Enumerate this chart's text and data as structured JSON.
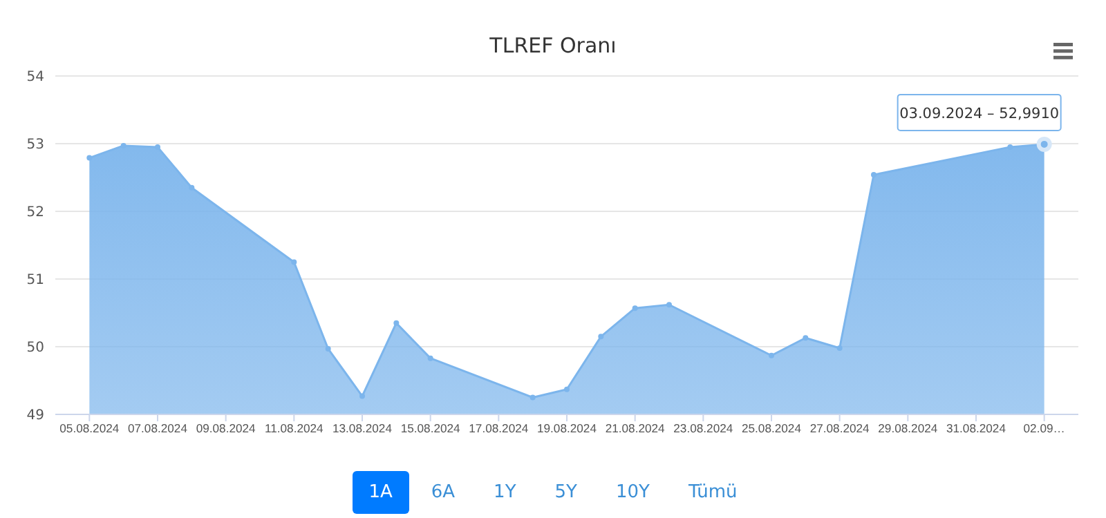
{
  "chart_data": {
    "type": "area",
    "title": "TLREF Oranı",
    "x": [
      "2024-08-05",
      "2024-08-06",
      "2024-08-07",
      "2024-08-08",
      "2024-08-11",
      "2024-08-12",
      "2024-08-13",
      "2024-08-14",
      "2024-08-15",
      "2024-08-18",
      "2024-08-19",
      "2024-08-20",
      "2024-08-21",
      "2024-08-22",
      "2024-08-25",
      "2024-08-26",
      "2024-08-27",
      "2024-08-28",
      "2024-09-01",
      "2024-09-02"
    ],
    "series": [
      {
        "color": "#7cb5ec",
        "values": [
          52.79,
          52.97,
          52.95,
          52.35,
          51.25,
          49.97,
          49.27,
          50.35,
          49.83,
          49.25,
          49.37,
          50.15,
          50.57,
          50.62,
          49.87,
          50.13,
          49.98,
          52.54,
          52.95,
          52.991
        ]
      }
    ],
    "xlim": [
      "2024-08-04",
      "2024-09-03"
    ],
    "xticks": [
      {
        "value": "2024-08-05",
        "label": "05.08.2024"
      },
      {
        "value": "2024-08-07",
        "label": "07.08.2024"
      },
      {
        "value": "2024-08-09",
        "label": "09.08.2024"
      },
      {
        "value": "2024-08-11",
        "label": "11.08.2024"
      },
      {
        "value": "2024-08-13",
        "label": "13.08.2024"
      },
      {
        "value": "2024-08-15",
        "label": "15.08.2024"
      },
      {
        "value": "2024-08-17",
        "label": "17.08.2024"
      },
      {
        "value": "2024-08-19",
        "label": "19.08.2024"
      },
      {
        "value": "2024-08-21",
        "label": "21.08.2024"
      },
      {
        "value": "2024-08-23",
        "label": "23.08.2024"
      },
      {
        "value": "2024-08-25",
        "label": "25.08.2024"
      },
      {
        "value": "2024-08-27",
        "label": "27.08.2024"
      },
      {
        "value": "2024-08-29",
        "label": "29.08.2024"
      },
      {
        "value": "2024-08-31",
        "label": "31.08.2024"
      },
      {
        "value": "2024-09-02",
        "label": "02.09…"
      }
    ],
    "ylim": [
      49,
      54
    ],
    "yticks": [
      49,
      50,
      51,
      52,
      53,
      54
    ],
    "grid": "y",
    "marker": "circle",
    "annotations": [
      {
        "text": "03.09.2024 – 52,9910",
        "x": "2024-09-02",
        "y": 52.991
      },
      "1A",
      "6A",
      "1Y",
      "5Y",
      "10Y",
      "Tümü"
    ]
  }
}
